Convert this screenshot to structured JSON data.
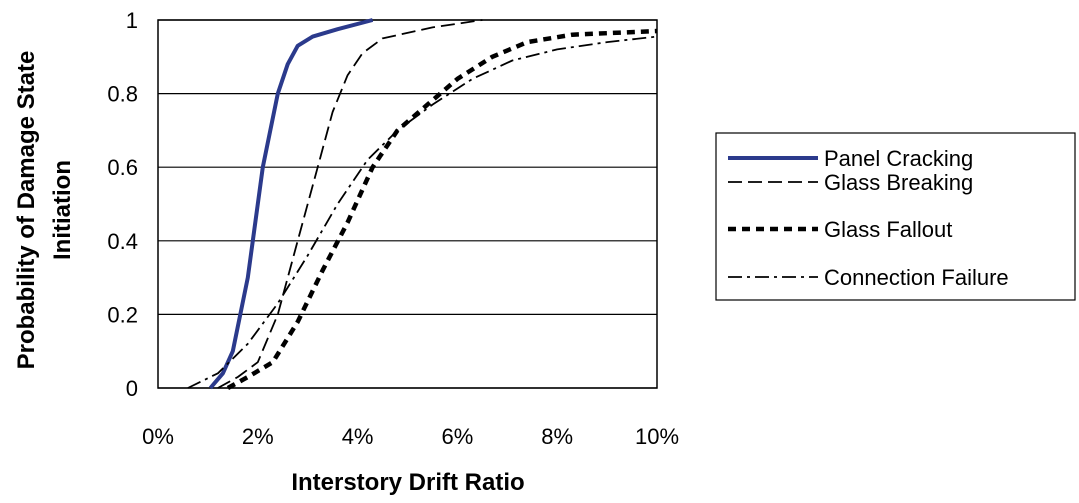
{
  "chart_data": {
    "type": "line",
    "title": "",
    "xlabel": "Interstory Drift Ratio",
    "ylabel_line1": "Probability of Damage State",
    "ylabel_line2": "Initiation",
    "xlim": [
      0,
      10
    ],
    "ylim": [
      0,
      1
    ],
    "x_ticks": [
      0,
      2,
      4,
      6,
      8,
      10
    ],
    "x_tick_labels": [
      "0%",
      "2%",
      "4%",
      "6%",
      "8%",
      "10%"
    ],
    "y_ticks": [
      0,
      0.2,
      0.4,
      0.6,
      0.8,
      1
    ],
    "y_tick_labels": [
      "0",
      "0.2",
      "0.4",
      "0.6",
      "0.8",
      "1"
    ],
    "grid": "horizontal",
    "legend_position": "right",
    "series": [
      {
        "name": "Panel Cracking",
        "style": "solid",
        "color": "#2b3a8c",
        "points": [
          [
            1.05,
            0
          ],
          [
            1.3,
            0.04
          ],
          [
            1.5,
            0.1
          ],
          [
            1.65,
            0.2
          ],
          [
            1.8,
            0.3
          ],
          [
            1.9,
            0.4
          ],
          [
            2.0,
            0.5
          ],
          [
            2.1,
            0.6
          ],
          [
            2.25,
            0.7
          ],
          [
            2.4,
            0.8
          ],
          [
            2.6,
            0.88
          ],
          [
            2.8,
            0.93
          ],
          [
            3.1,
            0.955
          ],
          [
            3.6,
            0.975
          ],
          [
            4.3,
            1.0
          ]
        ]
      },
      {
        "name": "Glass Breaking",
        "style": "dashed",
        "color": "#000000",
        "points": [
          [
            1.2,
            0
          ],
          [
            1.6,
            0.03
          ],
          [
            2.0,
            0.07
          ],
          [
            2.4,
            0.2
          ],
          [
            2.8,
            0.4
          ],
          [
            3.2,
            0.6
          ],
          [
            3.5,
            0.75
          ],
          [
            3.8,
            0.85
          ],
          [
            4.1,
            0.91
          ],
          [
            4.5,
            0.95
          ],
          [
            5.5,
            0.98
          ],
          [
            6.5,
            1.0
          ]
        ]
      },
      {
        "name": "Glass Fallout",
        "style": "dotted",
        "color": "#000000",
        "points": [
          [
            1.4,
            0
          ],
          [
            1.8,
            0.03
          ],
          [
            2.3,
            0.07
          ],
          [
            2.8,
            0.18
          ],
          [
            3.3,
            0.32
          ],
          [
            3.8,
            0.45
          ],
          [
            4.3,
            0.6
          ],
          [
            4.8,
            0.7
          ],
          [
            5.4,
            0.77
          ],
          [
            6.0,
            0.84
          ],
          [
            6.7,
            0.9
          ],
          [
            7.4,
            0.94
          ],
          [
            8.3,
            0.96
          ],
          [
            10.0,
            0.97
          ]
        ]
      },
      {
        "name": "Connection Failure",
        "style": "dashdot",
        "color": "#000000",
        "points": [
          [
            0.6,
            0
          ],
          [
            1.2,
            0.04
          ],
          [
            1.8,
            0.12
          ],
          [
            2.4,
            0.23
          ],
          [
            3.0,
            0.36
          ],
          [
            3.6,
            0.5
          ],
          [
            4.2,
            0.62
          ],
          [
            4.8,
            0.7
          ],
          [
            5.5,
            0.77
          ],
          [
            6.3,
            0.84
          ],
          [
            7.1,
            0.89
          ],
          [
            8.0,
            0.92
          ],
          [
            9.0,
            0.94
          ],
          [
            10.0,
            0.955
          ]
        ]
      }
    ]
  }
}
